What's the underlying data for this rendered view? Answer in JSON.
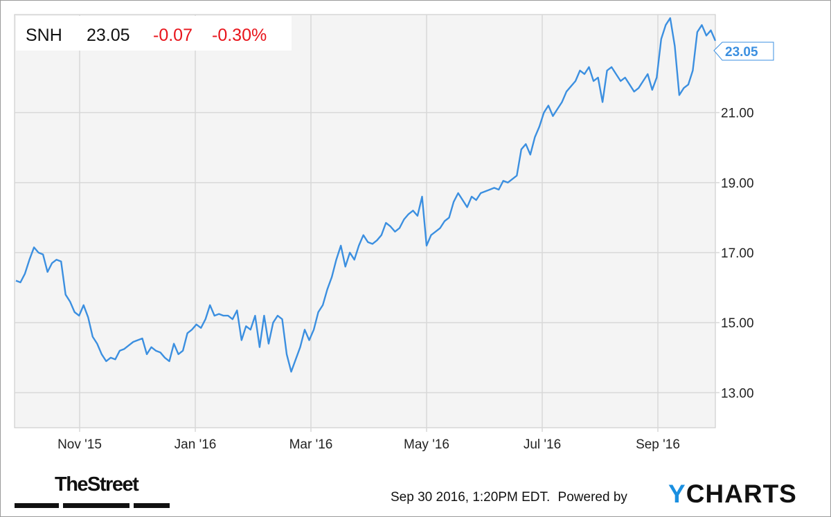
{
  "header": {
    "ticker": "SNH",
    "price": "23.05",
    "change": "-0.07",
    "change_pct": "-0.30%"
  },
  "colors": {
    "line": "#3b8fe0",
    "negative": "#e8141b",
    "plot_bg": "#f4f4f4",
    "grid": "#d8d8d8",
    "logo_accent": "#1a8fe0"
  },
  "chart_data": {
    "type": "line",
    "title": "",
    "xlabel": "",
    "ylabel": "",
    "ylim": [
      12,
      23.8
    ],
    "grid": true,
    "y_axis_side": "right",
    "y_ticks": [
      "13.00",
      "15.00",
      "17.00",
      "19.00",
      "21.00"
    ],
    "x_ticks": [
      "Nov '15",
      "Jan '16",
      "Mar '16",
      "May '16",
      "Jul '16",
      "Sep '16"
    ],
    "last_value_label": "23.05",
    "series": [
      {
        "values": [
          16.2,
          16.15,
          16.4,
          16.8,
          17.15,
          17.0,
          16.95,
          16.45,
          16.7,
          16.8,
          16.75,
          15.8,
          15.6,
          15.3,
          15.2,
          15.5,
          15.15,
          14.6,
          14.4,
          14.1,
          13.9,
          14.0,
          13.95,
          14.2,
          14.25,
          14.35,
          14.45,
          14.5,
          14.55,
          14.1,
          14.3,
          14.2,
          14.15,
          14.0,
          13.9,
          14.4,
          14.1,
          14.2,
          14.7,
          14.8,
          14.95,
          14.85,
          15.1,
          15.5,
          15.2,
          15.25,
          15.2,
          15.2,
          15.1,
          15.35,
          14.5,
          14.9,
          14.8,
          15.2,
          14.3,
          15.2,
          14.4,
          15.0,
          15.2,
          15.1,
          14.1,
          13.6,
          13.95,
          14.3,
          14.8,
          14.5,
          14.8,
          15.3,
          15.5,
          15.95,
          16.3,
          16.8,
          17.2,
          16.6,
          17.0,
          16.8,
          17.2,
          17.5,
          17.3,
          17.25,
          17.35,
          17.5,
          17.85,
          17.75,
          17.6,
          17.7,
          17.95,
          18.1,
          18.2,
          18.05,
          18.6,
          17.2,
          17.5,
          17.6,
          17.7,
          17.9,
          18.0,
          18.45,
          18.7,
          18.5,
          18.3,
          18.6,
          18.5,
          18.7,
          18.75,
          18.8,
          18.85,
          18.8,
          19.05,
          19.0,
          19.1,
          19.2,
          19.95,
          20.1,
          19.8,
          20.3,
          20.6,
          21.0,
          21.2,
          20.9,
          21.1,
          21.3,
          21.6,
          21.75,
          21.9,
          22.2,
          22.1,
          22.3,
          21.9,
          22.0,
          21.3,
          22.2,
          22.3,
          22.1,
          21.9,
          22.0,
          21.8,
          21.6,
          21.7,
          21.9,
          22.1,
          21.65,
          22.0,
          23.1,
          23.5,
          23.7,
          22.9,
          21.5,
          21.7,
          21.8,
          22.2,
          23.3,
          23.5,
          23.2,
          23.35,
          23.05
        ]
      }
    ]
  },
  "footer": {
    "timestamp": "Sep 30 2016, 1:20PM EDT.",
    "powered_by": "Powered by",
    "ycharts_y": "Y",
    "ycharts_rest": "CHARTS",
    "thestreet": "TheStreet"
  }
}
